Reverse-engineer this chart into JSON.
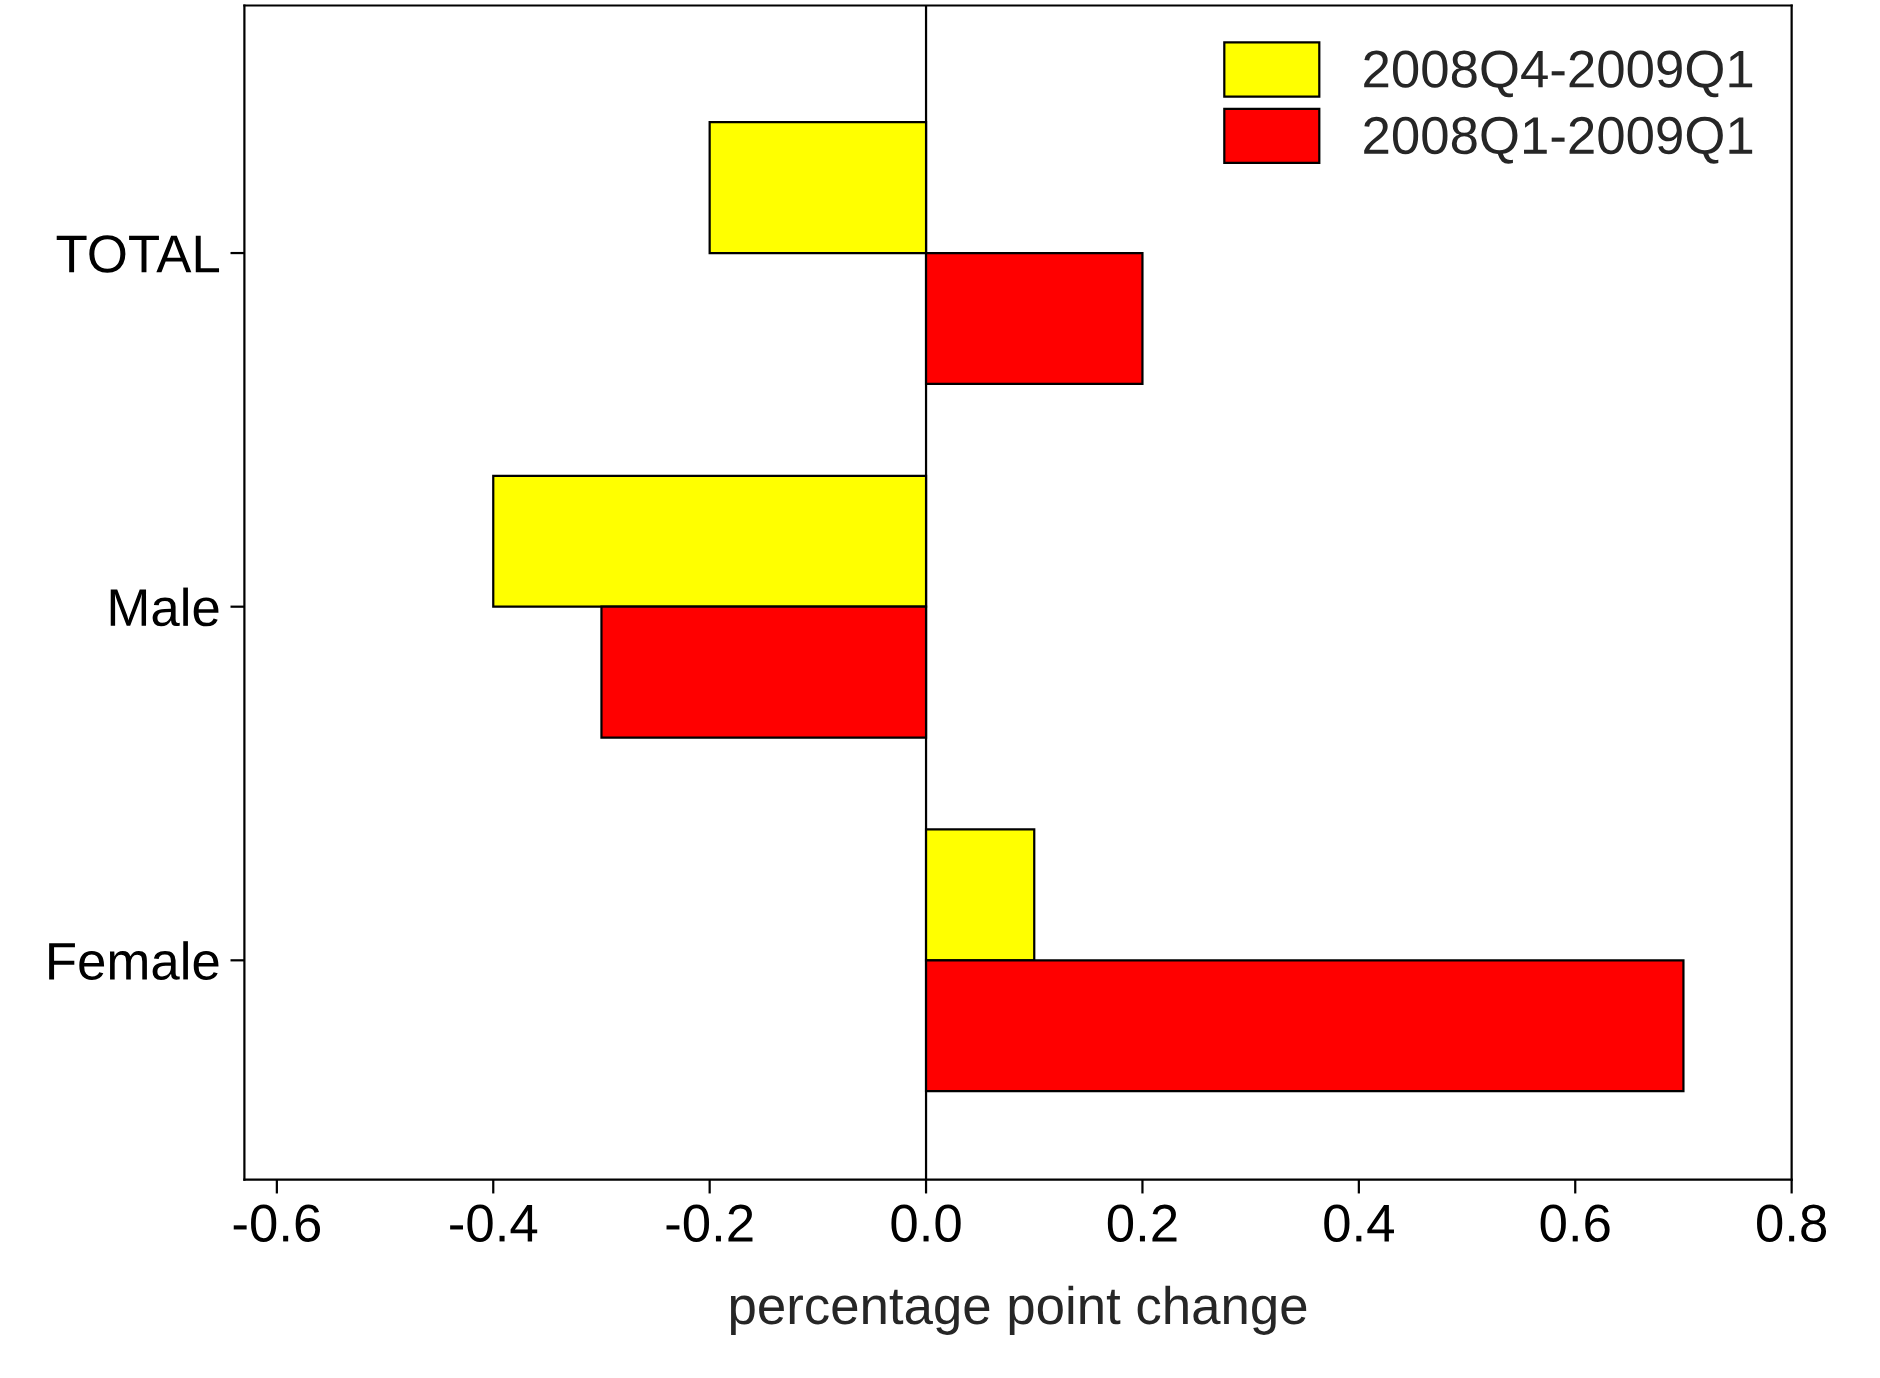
{
  "chart_data": {
    "type": "bar",
    "orientation": "horizontal",
    "xlabel": "percentage point change",
    "categories": [
      "TOTAL",
      "Male",
      "Female"
    ],
    "series": [
      {
        "name": "2008Q4-2009Q1",
        "color": "#ffff00",
        "values": [
          -0.2,
          -0.4,
          0.1
        ]
      },
      {
        "name": "2008Q1-2009Q1",
        "color": "#ff0000",
        "values": [
          0.2,
          -0.3,
          0.7
        ]
      }
    ],
    "xlim": [
      -0.63,
      0.8
    ],
    "xticks": [
      {
        "value": -0.6,
        "label": "-0.6"
      },
      {
        "value": -0.4,
        "label": "-0.4"
      },
      {
        "value": -0.2,
        "label": "-0.2"
      },
      {
        "value": 0,
        "label": "0.0"
      },
      {
        "value": 0.2,
        "label": "0.2"
      },
      {
        "value": 0.4,
        "label": "0.4"
      },
      {
        "value": 0.6,
        "label": "0.6"
      },
      {
        "value": 0.8,
        "label": "0.8"
      }
    ],
    "ref_lines": [
      {
        "axis": "x",
        "value": 0,
        "color": "#000000"
      }
    ],
    "grid": false,
    "legend": "top right"
  }
}
